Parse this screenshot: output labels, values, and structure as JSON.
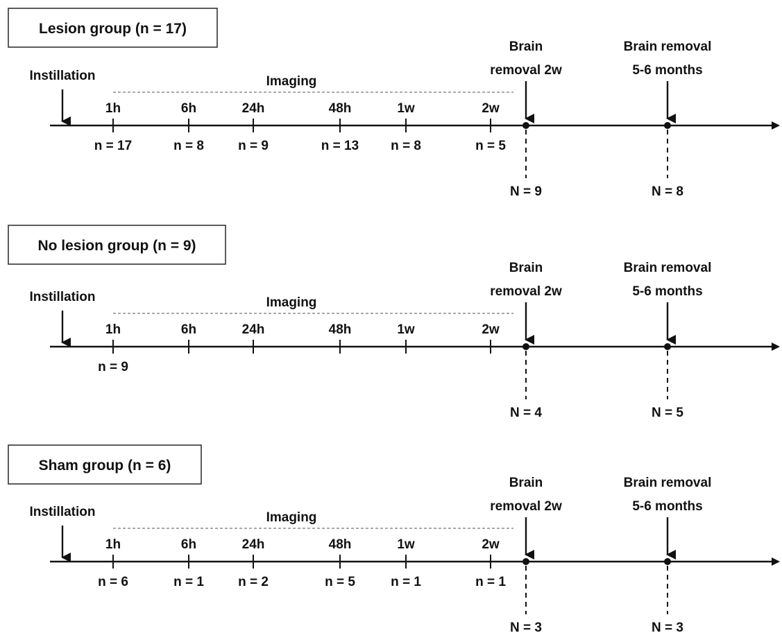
{
  "figure": {
    "imaging_label": "Imaging",
    "instillation_label": "Instillation",
    "time_points": [
      "1h",
      "6h",
      "24h",
      "48h",
      "1w",
      "2w"
    ],
    "removals": [
      {
        "line1": "Brain",
        "line2": "removal 2w"
      },
      {
        "line1": "Brain removal",
        "line2": "5-6 months"
      }
    ]
  },
  "groups": [
    {
      "title": "Lesion group (n = 17)",
      "imaging_counts": [
        "n = 17",
        "n = 8",
        "n = 9",
        "n = 13",
        "n = 8",
        "n = 5"
      ],
      "removal_counts": [
        "N = 9",
        "N = 8"
      ]
    },
    {
      "title": "No lesion group (n = 9)",
      "imaging_counts": [
        "n = 9",
        null,
        null,
        null,
        null,
        null
      ],
      "removal_counts": [
        "N = 4",
        "N = 5"
      ]
    },
    {
      "title": "Sham group (n = 6)",
      "imaging_counts": [
        "n = 6",
        "n = 1",
        "n = 2",
        "n = 5",
        "n = 1",
        "n = 1"
      ],
      "removal_counts": [
        "N = 3",
        "N = 3"
      ]
    }
  ]
}
